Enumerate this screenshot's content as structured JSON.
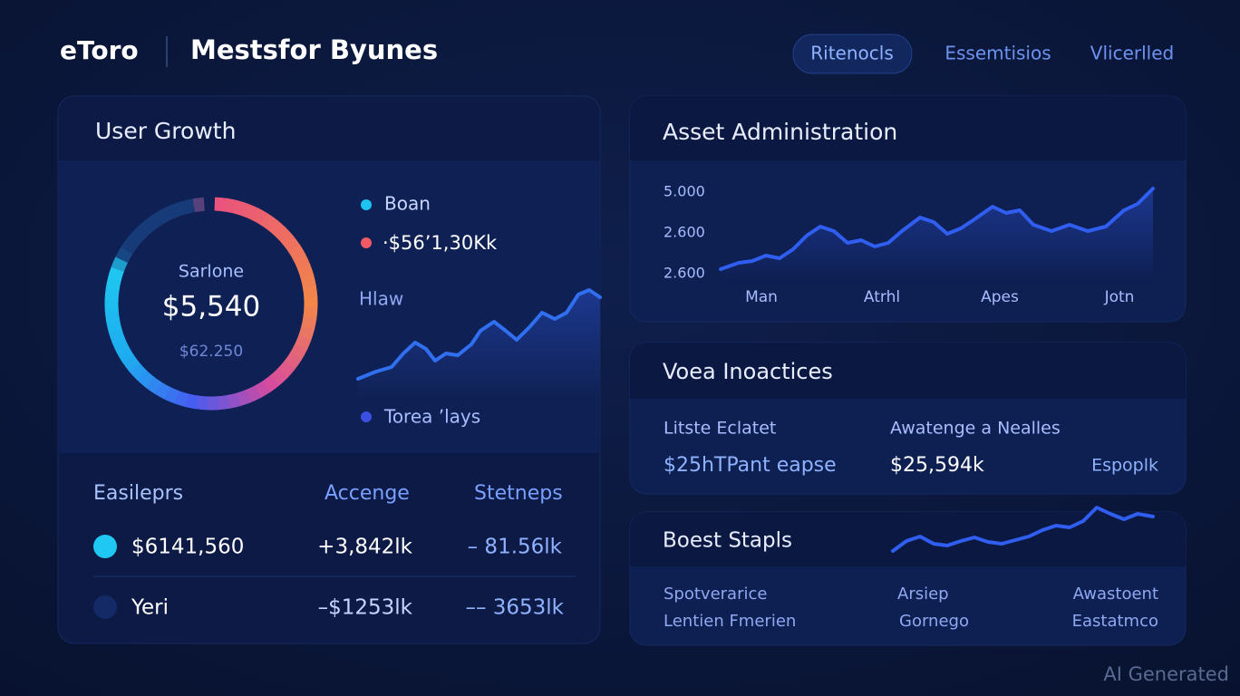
{
  "header": {
    "brand": "eToro",
    "title": "Mestsfor Byunes",
    "nav": [
      "Ritenocls",
      "Essemtisios",
      "Vlicerlled"
    ]
  },
  "user_growth": {
    "title": "User Growth",
    "donut": {
      "label": "Sarlone",
      "value": "$5,540",
      "sub": "$62.250"
    },
    "legend": [
      "Boan",
      "·$56ʼ1,30Kk",
      "Hlaw",
      "Torea ʼlays"
    ],
    "table": {
      "headers": [
        "Easileprs",
        "Accenge",
        "Stetneps"
      ],
      "rows": [
        [
          "$6141,560",
          "+3,842lk",
          "– 81.56lk"
        ],
        [
          "Yeri",
          "–$1253lk",
          "–– 3653lk"
        ]
      ]
    }
  },
  "asset": {
    "title": "Asset Administration",
    "y_labels": [
      "5.000",
      "2.600",
      "2.600"
    ],
    "x_labels": [
      "Man",
      "Atrhl",
      "Apes",
      "Jotn"
    ]
  },
  "voea": {
    "title": "Voea Inoactices",
    "labels": [
      "Litste Eclatet",
      "Awatenge a Nealles"
    ],
    "values": [
      "$25hTPant eapse",
      "$25,594k",
      "Espoplk"
    ]
  },
  "boest": {
    "title": "Boest Stapls",
    "columns": [
      [
        "Spotverarice",
        "Lentien Fmerien"
      ],
      [
        "Arsiep",
        "Gornego"
      ],
      [
        "Awastoent",
        "Eastatmco"
      ]
    ]
  },
  "watermark": "AI Generated"
}
